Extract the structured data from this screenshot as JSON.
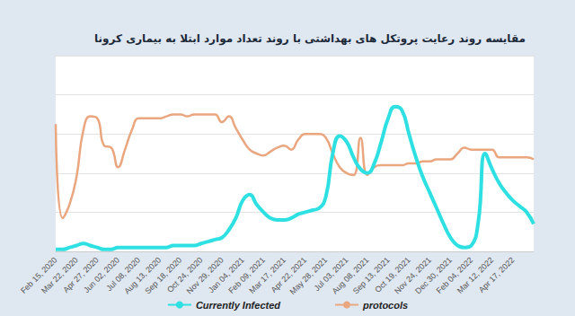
{
  "chart_data": {
    "type": "line",
    "title": "مقایسه روند رعایت پروتکل های بهداشتی با روند تعداد موارد ابتلا به بیماری کرونا",
    "categories": [
      "Feb 15, 2020",
      null,
      null,
      "Mar 22, 2020",
      null,
      null,
      "Apr 27, 2020",
      null,
      null,
      "Jun 02, 2020",
      null,
      null,
      "Jul 08, 2020",
      null,
      null,
      "Aug 13, 2020",
      null,
      null,
      "Sep 18, 2020",
      null,
      null,
      "Oct 24, 2020",
      null,
      null,
      "Nov 29, 2020",
      null,
      null,
      "Jan 04, 2021",
      null,
      null,
      "Feb 09, 2021",
      null,
      null,
      "Mar 17, 2021",
      null,
      null,
      "Apr 22, 2021",
      null,
      null,
      "May 28, 2021",
      null,
      null,
      "Jul 03, 2021",
      null,
      null,
      "Aug 08, 2021",
      null,
      null,
      "Sep 13, 2021",
      null,
      null,
      "Oct 19, 2021",
      null,
      null,
      "Nov 24, 2021",
      null,
      null,
      "Dec 30, 2021",
      null,
      null,
      "Feb 04, 2022",
      null,
      null,
      "Mar 12, 2022",
      null,
      null,
      "Apr 17, 2022",
      null,
      null,
      null
    ],
    "series": [
      {
        "name": "Currently Infected",
        "color": "#2fe0e3",
        "values": [
          1,
          1,
          2,
          3,
          4,
          3,
          2,
          1,
          1,
          2,
          2,
          2,
          2,
          2,
          2,
          2,
          2,
          3,
          3,
          3,
          3,
          4,
          5,
          6,
          7,
          11,
          17,
          26,
          29,
          24,
          20,
          17,
          16,
          16,
          17,
          19,
          20,
          21,
          22,
          28,
          50,
          59,
          56,
          48,
          42,
          40,
          45,
          56,
          68,
          74,
          72,
          60,
          48,
          38,
          30,
          22,
          14,
          7,
          3,
          2,
          3,
          15,
          50,
          42,
          35,
          30,
          26,
          23,
          20,
          14
        ]
      },
      {
        "name": "protocols",
        "color": "#e9a67f",
        "values": [
          65,
          17,
          24,
          38,
          62,
          69,
          68,
          54,
          53,
          43,
          52,
          62,
          68,
          68,
          68,
          68,
          69,
          70,
          70,
          69,
          70,
          70,
          70,
          70,
          66,
          69,
          63,
          57,
          52,
          50,
          49,
          51,
          53,
          54,
          52,
          57,
          60,
          60,
          60,
          58,
          50,
          43,
          40,
          39,
          58,
          39,
          43,
          44,
          44,
          44,
          44,
          45,
          45,
          46,
          46,
          47,
          47,
          47,
          50,
          53,
          52,
          52,
          52,
          52,
          48,
          48,
          48,
          48,
          48,
          47
        ]
      }
    ],
    "ylim": [
      0,
      100
    ],
    "yticks": [
      0,
      20,
      40,
      60,
      80,
      100
    ],
    "grid": true,
    "legend": "bottom",
    "tick_labels": "x"
  }
}
